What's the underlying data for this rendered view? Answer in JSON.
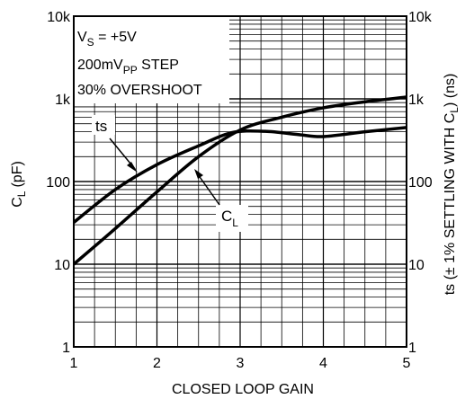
{
  "chart_data": {
    "type": "line",
    "xlabel": "CLOSED LOOP GAIN",
    "ylabel_left": {
      "main": "C",
      "sub": "L",
      "unit": "(pF)"
    },
    "ylabel_right": {
      "pre": "ts (± 1% SETTLING WITH  C",
      "sub": "L",
      "post": ") (ns)"
    },
    "x_ticks": [
      "1",
      "2",
      "3",
      "4",
      "5"
    ],
    "xlim": [
      1,
      5
    ],
    "y_scale": "log",
    "ylim": [
      1,
      10000
    ],
    "y_ticks_left": [
      "1",
      "10",
      "100",
      "1k",
      "10k"
    ],
    "y_ticks_right": [
      "1",
      "10",
      "100",
      "1k",
      "10k"
    ],
    "grid": true,
    "annotation": {
      "line1": {
        "pre": "V",
        "sub": "S",
        "post": " = +5V"
      },
      "line2": {
        "pre": "200mV",
        "sub": "PP",
        "post": " STEP"
      },
      "line3": "30% OVERSHOOT"
    },
    "series": [
      {
        "name": "ts",
        "label": {
          "main": "ts",
          "sub": ""
        },
        "x": [
          1.0,
          1.5,
          2.0,
          2.5,
          2.9,
          3.3,
          3.7,
          4.0,
          4.5,
          5.0
        ],
        "y": [
          32,
          80,
          160,
          270,
          390,
          405,
          370,
          350,
          400,
          450
        ]
      },
      {
        "name": "CL",
        "label": {
          "main": "C",
          "sub": "L"
        },
        "x": [
          1.0,
          1.5,
          2.0,
          2.5,
          3.0,
          3.5,
          4.0,
          4.5,
          5.0
        ],
        "y": [
          10,
          27,
          75,
          200,
          420,
          600,
          780,
          920,
          1050
        ]
      }
    ]
  }
}
